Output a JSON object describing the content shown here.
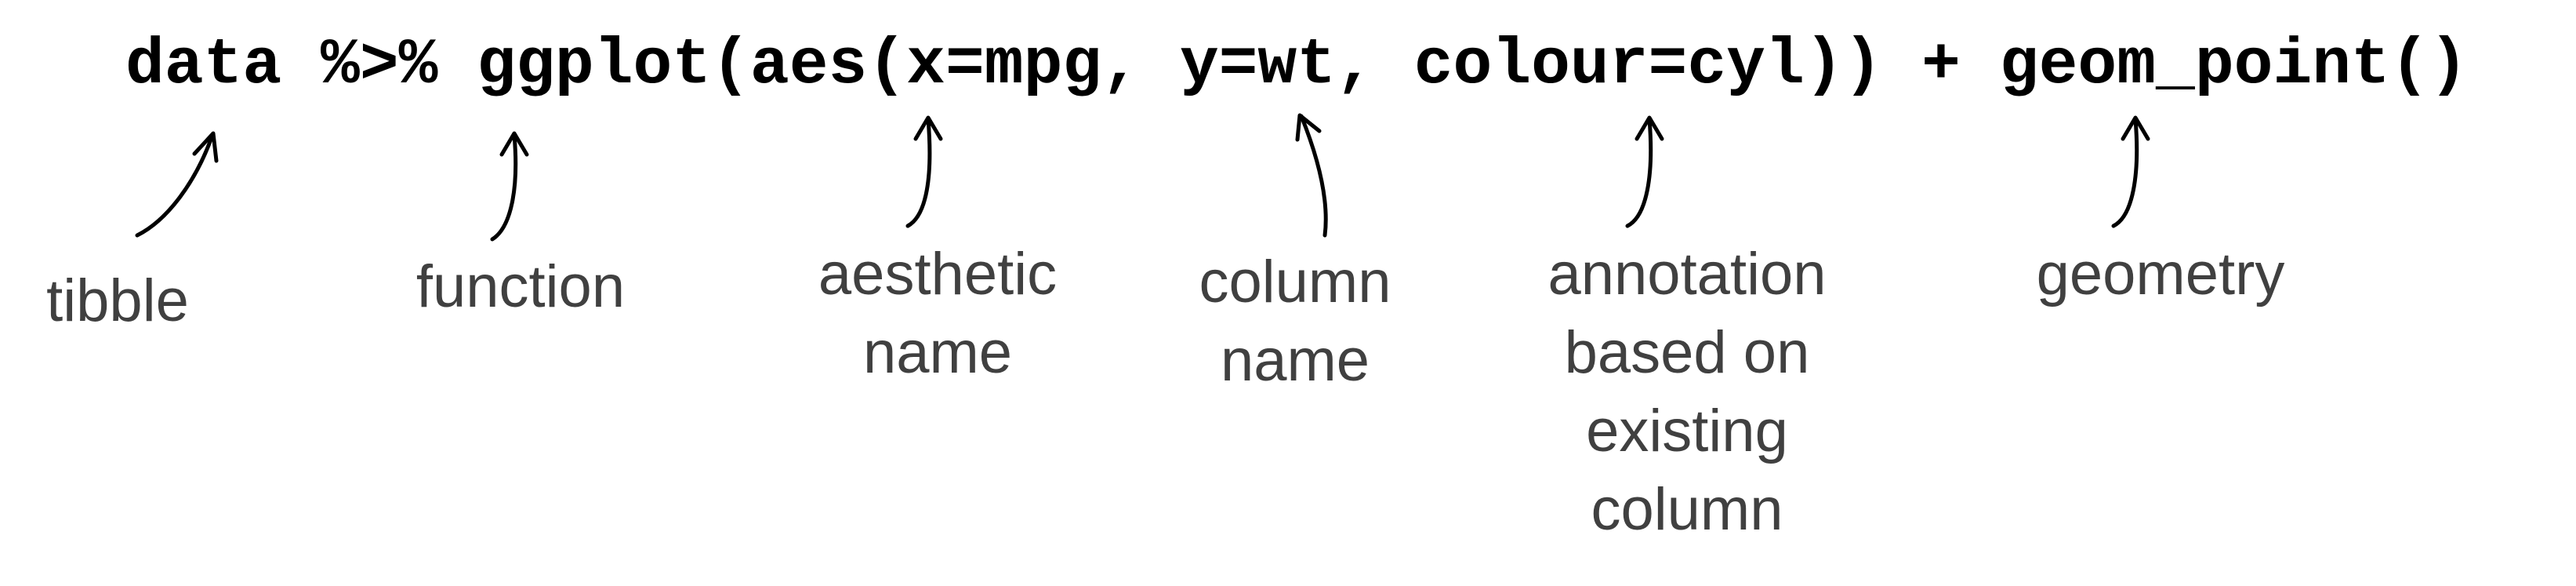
{
  "code": {
    "text": "data %>% ggplot(aes(x=mpg, y=wt, colour=cyl)) + geom_point()"
  },
  "annotations": [
    {
      "id": "tibble",
      "text": "tibble"
    },
    {
      "id": "function",
      "text": "function"
    },
    {
      "id": "aesthetic-name",
      "text": "aesthetic\nname"
    },
    {
      "id": "column-name",
      "text": "column\nname"
    },
    {
      "id": "annotation-based",
      "text": "annotation\nbased on\nexisting\ncolumn"
    },
    {
      "id": "geometry",
      "text": "geometry"
    }
  ],
  "colors": {
    "code": "#000000",
    "label": "#404040",
    "arrow": "#000000",
    "background": "#ffffff"
  }
}
